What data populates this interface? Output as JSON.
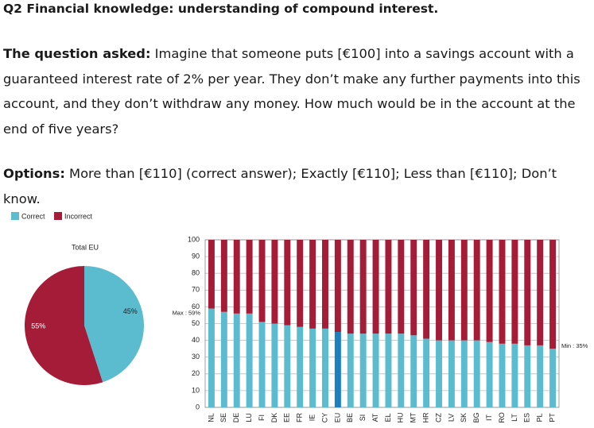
{
  "document": {
    "title": "Q2 Financial knowledge: understanding of compound interest.",
    "question_label": "The question asked:",
    "question": "Imagine that someone puts [€100] into a savings account with a guaranteed interest rate of 2% per year. They don’t make any further payments into this account, and they don’t withdraw any money. How much would be in the account at the end of five years?",
    "options_label": "Options:",
    "options": "More than [€110] (correct answer); Exactly [€110]; Less than [€110]; Don’t know."
  },
  "chart_data": [
    {
      "type": "pie",
      "title": "Total EU",
      "values": [
        45,
        55
      ],
      "value_labels": [
        "45%",
        "55%"
      ],
      "colors": [
        "#5bbccf",
        "#a51c38"
      ]
    },
    {
      "type": "bar",
      "stacked": true,
      "categories": [
        "NL",
        "SE",
        "DE",
        "LU",
        "FI",
        "DK",
        "EE",
        "FR",
        "IE",
        "CY",
        "EU",
        "BE",
        "SI",
        "AT",
        "EL",
        "HU",
        "MT",
        "HR",
        "CZ",
        "LV",
        "SK",
        "BG",
        "IT",
        "RO",
        "LT",
        "ES",
        "PL",
        "PT"
      ],
      "series": [
        {
          "name": "Correct",
          "color": "#5bbccf",
          "values": [
            59,
            57,
            56,
            56,
            51,
            50,
            49,
            48,
            47,
            47,
            45,
            44,
            44,
            44,
            44,
            44,
            43,
            41,
            40,
            40,
            40,
            40,
            39,
            38,
            38,
            37,
            37,
            35
          ]
        },
        {
          "name": "Incorrect",
          "color": "#a51c38",
          "values": [
            41,
            43,
            44,
            44,
            49,
            50,
            51,
            52,
            53,
            53,
            55,
            56,
            56,
            56,
            56,
            56,
            57,
            59,
            60,
            60,
            60,
            60,
            61,
            62,
            62,
            63,
            63,
            65
          ]
        }
      ],
      "highlight": "EU",
      "highlight_color": "#1b7fc0",
      "annotations": [
        "Max : 59%",
        "Min : 35%"
      ],
      "ylim": [
        0,
        100
      ],
      "yticks": [
        0,
        10,
        20,
        30,
        40,
        50,
        60,
        70,
        80,
        90,
        100
      ],
      "grid": true,
      "legend": "top-left"
    }
  ]
}
